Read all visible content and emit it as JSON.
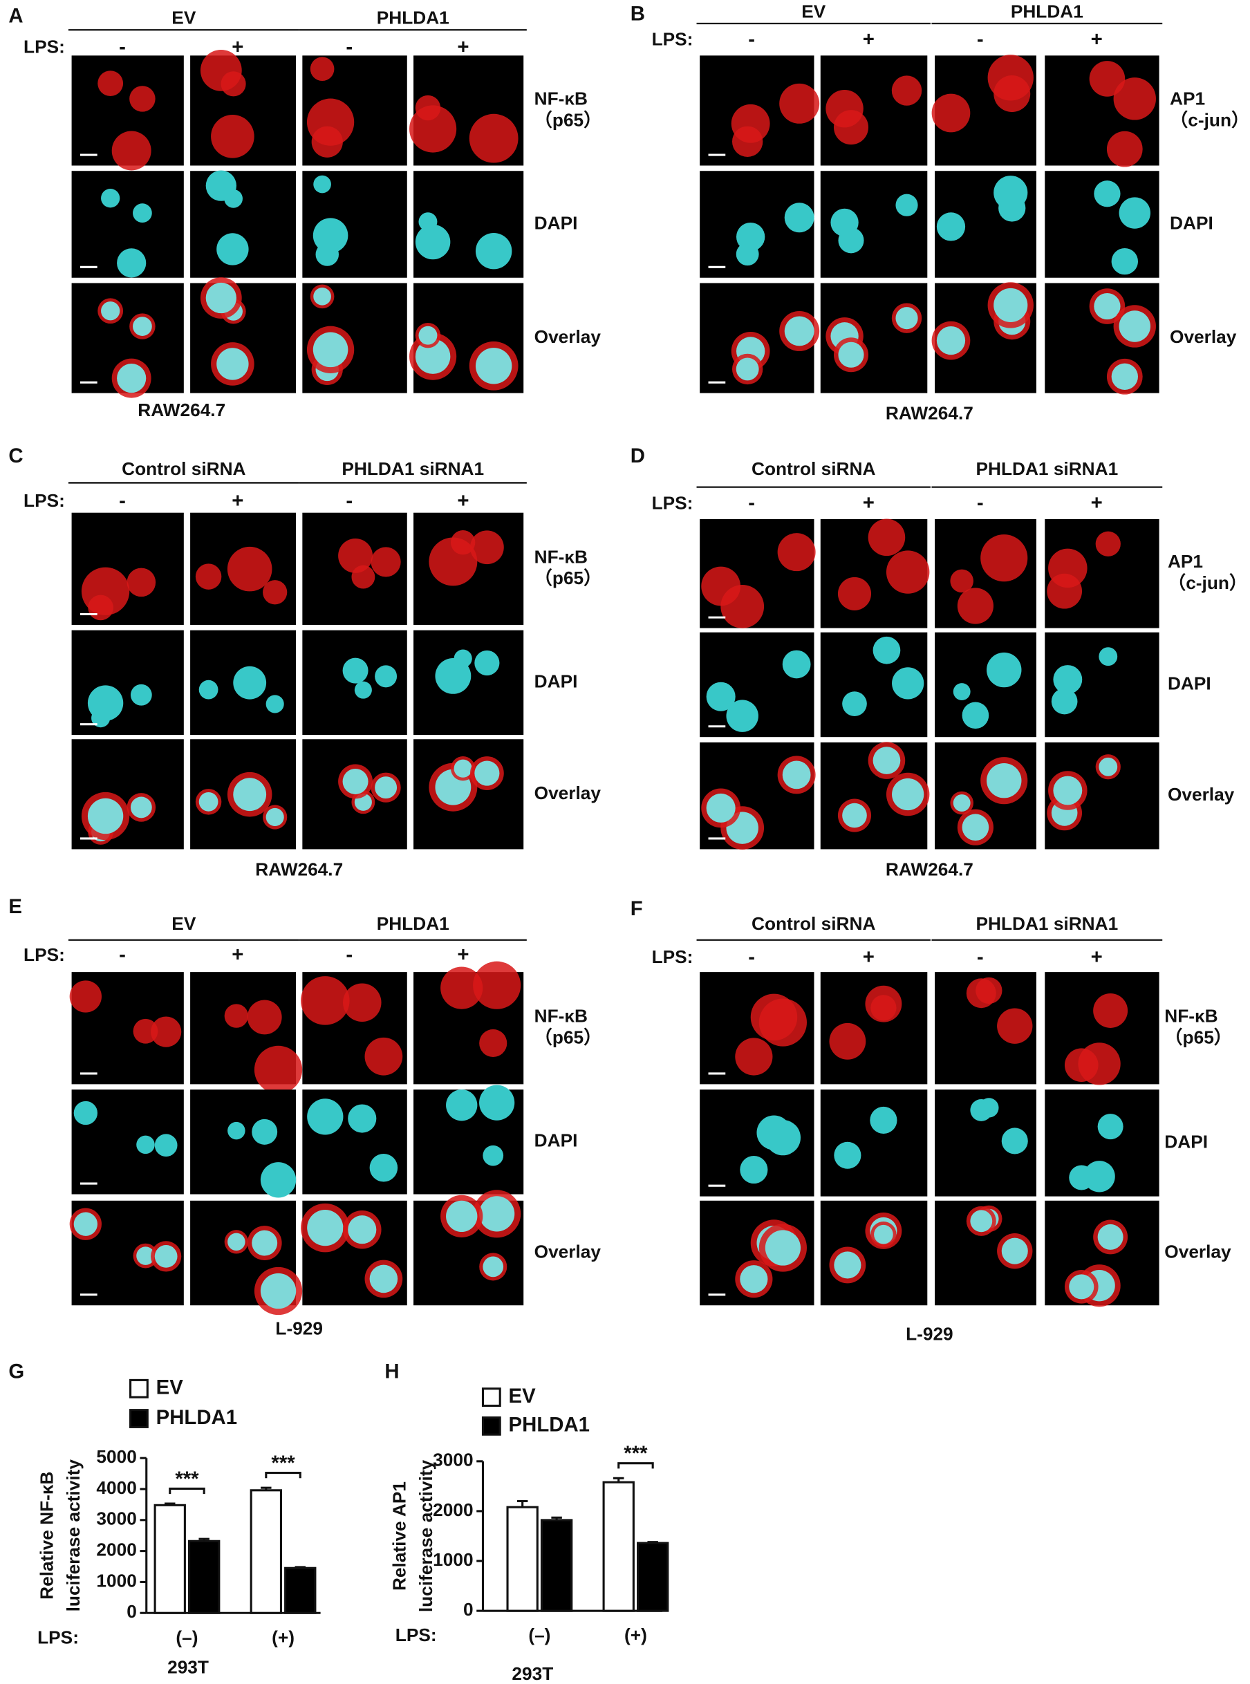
{
  "panels": [
    {
      "letter": "A",
      "groups": [
        "EV",
        "PHLDA1"
      ],
      "lps_label": "LPS:",
      "lps": [
        "-",
        "+",
        "-",
        "+"
      ],
      "rows": [
        [
          "NF-κB",
          "（p65）"
        ],
        [
          "DAPI"
        ],
        [
          "Overlay"
        ]
      ],
      "cell_line": "RAW264.7"
    },
    {
      "letter": "B",
      "groups": [
        "EV",
        "PHLDA1"
      ],
      "lps_label": "LPS:",
      "lps": [
        "-",
        "+",
        "-",
        "+"
      ],
      "rows": [
        [
          "AP1",
          "（c-jun）"
        ],
        [
          "DAPI"
        ],
        [
          "Overlay"
        ]
      ],
      "cell_line": "RAW264.7"
    },
    {
      "letter": "C",
      "groups": [
        "Control siRNA",
        "PHLDA1 siRNA1"
      ],
      "lps_label": "LPS:",
      "lps": [
        "-",
        "+",
        "-",
        "+"
      ],
      "rows": [
        [
          "NF-κB",
          "（p65）"
        ],
        [
          "DAPI"
        ],
        [
          "Overlay"
        ]
      ],
      "cell_line": "RAW264.7"
    },
    {
      "letter": "D",
      "groups": [
        "Control siRNA",
        "PHLDA1 siRNA1"
      ],
      "lps_label": "LPS:",
      "lps": [
        "-",
        "+",
        "-",
        "+"
      ],
      "rows": [
        [
          "AP1",
          "（c-jun）"
        ],
        [
          "DAPI"
        ],
        [
          "Overlay"
        ]
      ],
      "cell_line": "RAW264.7"
    },
    {
      "letter": "E",
      "groups": [
        "EV",
        "PHLDA1"
      ],
      "lps_label": "LPS:",
      "lps": [
        "-",
        "+",
        "-",
        "+"
      ],
      "rows": [
        [
          "NF-κB",
          "（p65）"
        ],
        [
          "DAPI"
        ],
        [
          "Overlay"
        ]
      ],
      "cell_line": "L-929"
    },
    {
      "letter": "F",
      "groups": [
        "Control siRNA",
        "PHLDA1 siRNA1"
      ],
      "lps_label": "LPS:",
      "lps": [
        "-",
        "+",
        "-",
        "+"
      ],
      "rows": [
        [
          "NF-κB",
          "（p65）"
        ],
        [
          "DAPI"
        ],
        [
          "Overlay"
        ]
      ],
      "cell_line": "L-929"
    }
  ],
  "chart_data": [
    {
      "type": "bar",
      "letter": "G",
      "ylabel": [
        "Relative NF-κB",
        "luciferase activity"
      ],
      "x_prefix": "LPS:",
      "xlabel": "293T",
      "categories": [
        "(–)",
        "(+)"
      ],
      "series": [
        {
          "name": "EV",
          "color": "#ffffff",
          "values": [
            3480,
            3960
          ],
          "errors": [
            50,
            80
          ]
        },
        {
          "name": "PHLDA1",
          "color": "#000000",
          "values": [
            2320,
            1450
          ],
          "errors": [
            70,
            30
          ]
        }
      ],
      "significance": [
        "***",
        "***"
      ],
      "ylim": [
        0,
        5000
      ],
      "yticks": [
        0,
        1000,
        2000,
        3000,
        4000,
        5000
      ]
    },
    {
      "type": "bar",
      "letter": "H",
      "ylabel": [
        "Relative AP1",
        "luciferase activity"
      ],
      "x_prefix": "LPS:",
      "xlabel": "293T",
      "categories": [
        "(–)",
        "(+)"
      ],
      "series": [
        {
          "name": "EV",
          "color": "#ffffff",
          "values": [
            2080,
            2580
          ],
          "errors": [
            120,
            80
          ]
        },
        {
          "name": "PHLDA1",
          "color": "#000000",
          "values": [
            1820,
            1360
          ],
          "errors": [
            50,
            20
          ]
        }
      ],
      "significance": [
        null,
        "***"
      ],
      "ylim": [
        0,
        3000
      ],
      "yticks": [
        0,
        1000,
        2000,
        3000
      ]
    }
  ]
}
